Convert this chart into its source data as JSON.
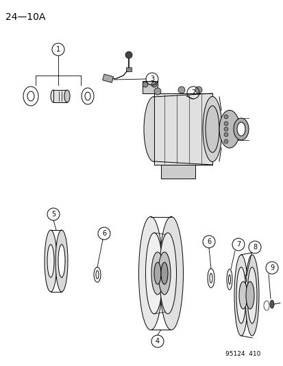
{
  "title": "24—10A",
  "footnote": "95124  410",
  "bg_color": "#ffffff",
  "text_color": "#000000",
  "title_fontsize": 10,
  "label_fontsize": 7,
  "lw": 0.7
}
